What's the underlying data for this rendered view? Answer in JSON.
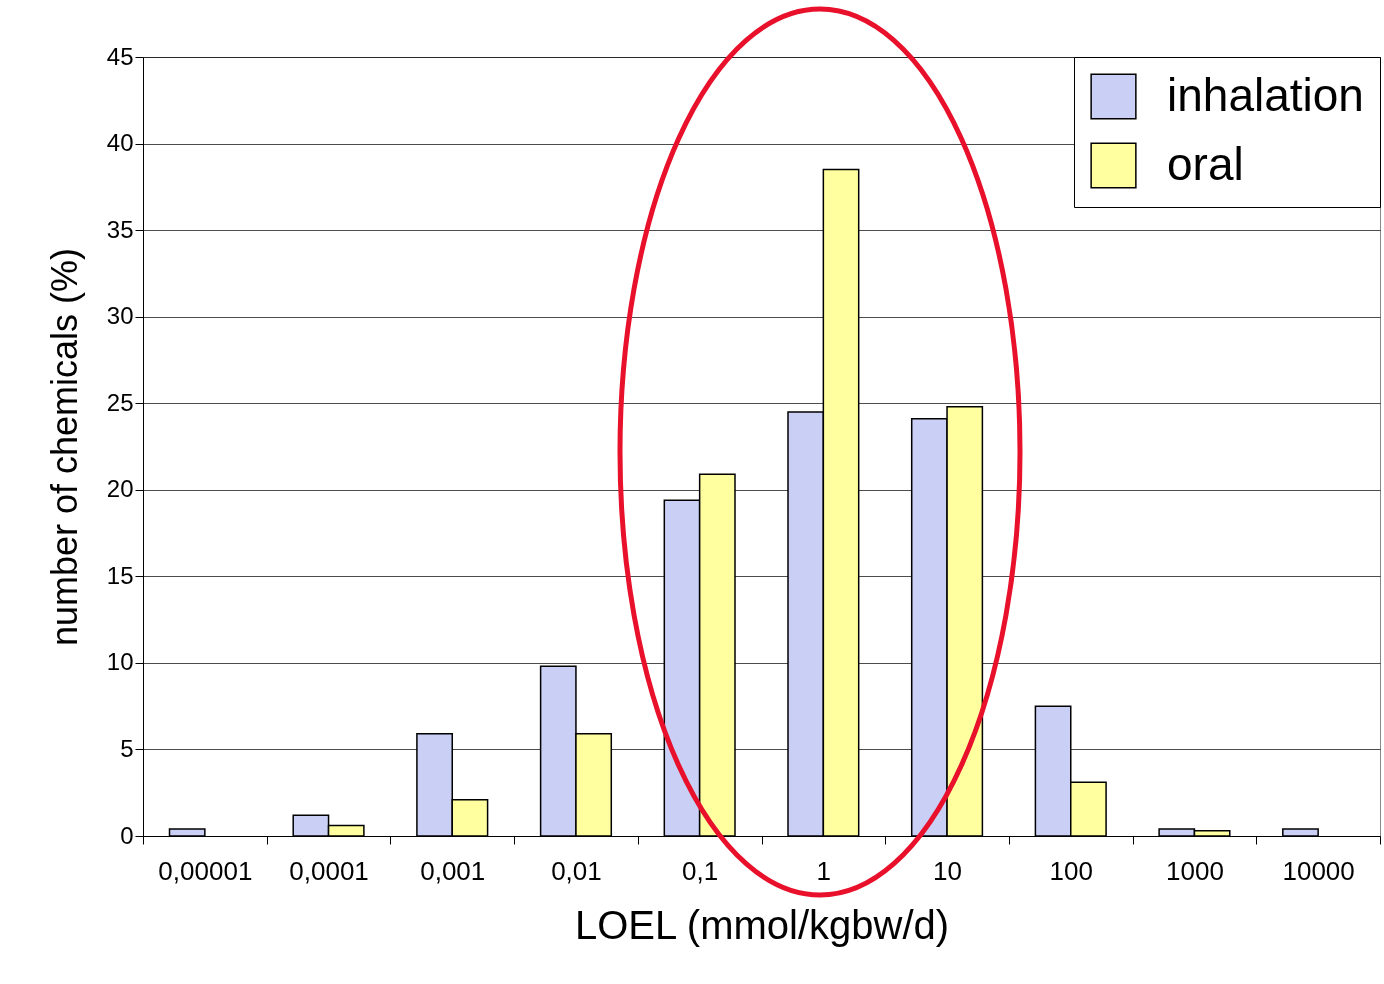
{
  "chart_data": {
    "type": "bar",
    "xlabel": "LOEL (mmol/kgbw/d)",
    "ylabel": "number of chemicals (%)",
    "categories": [
      "0,00001",
      "0,0001",
      "0,001",
      "0,01",
      "0,1",
      "1",
      "10",
      "100",
      "1000",
      "10000"
    ],
    "series": [
      {
        "name": "inhalation",
        "color": "#c9cff5",
        "values": [
          0.4,
          1.2,
          5.9,
          9.8,
          19.4,
          24.5,
          24.1,
          7.5,
          0.4,
          0.4
        ]
      },
      {
        "name": "oral",
        "color": "#ffffa0",
        "values": [
          null,
          0.6,
          2.1,
          5.9,
          20.9,
          38.5,
          24.8,
          3.1,
          0.3,
          null
        ]
      }
    ],
    "ylim": [
      0,
      45
    ],
    "yticks": [
      0,
      5,
      10,
      15,
      20,
      25,
      30,
      35,
      40,
      45
    ],
    "grid": "y",
    "legend": "top right"
  }
}
